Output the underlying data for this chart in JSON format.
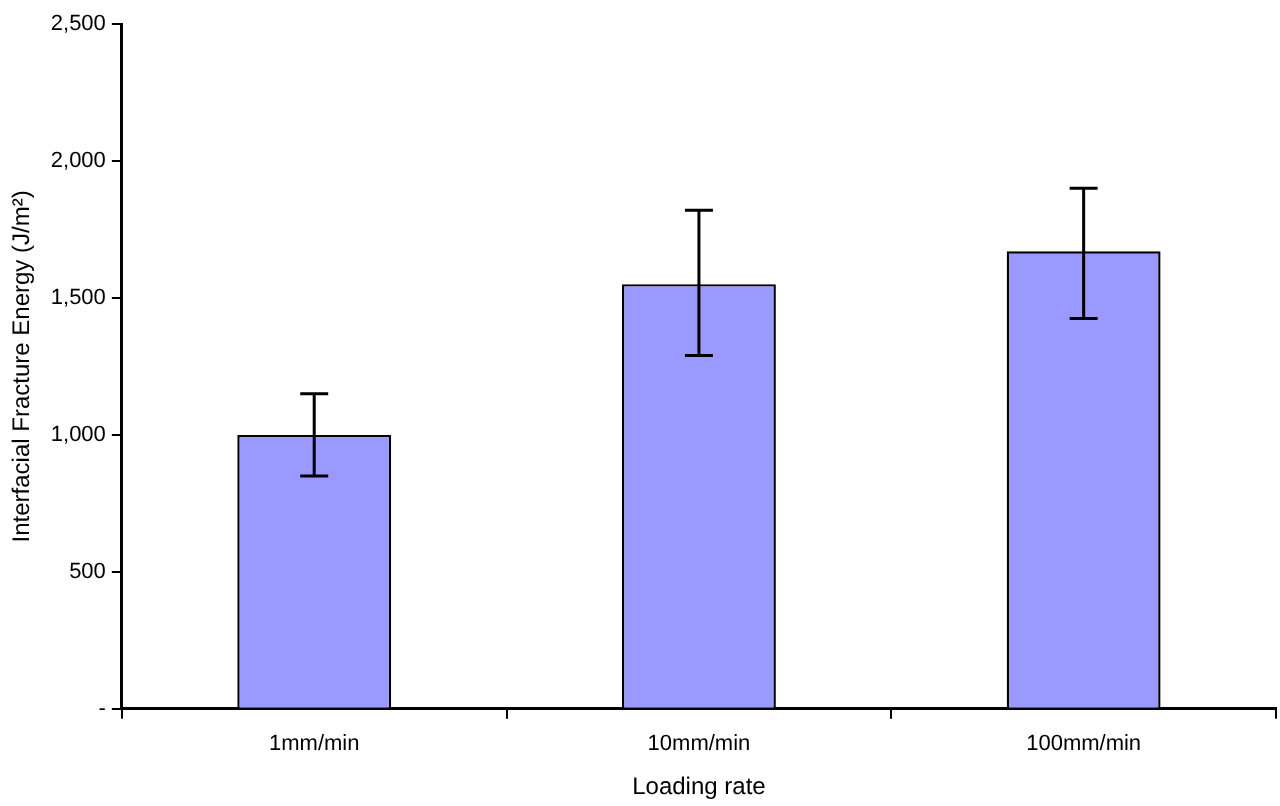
{
  "chart_data": {
    "type": "bar",
    "xlabel": "Loading rate",
    "ylabel": "Interfacial Fracture Energy (J/m²)",
    "categories": [
      "1mm/min",
      "10mm/min",
      "100mm/min"
    ],
    "values": [
      1000,
      1550,
      1670
    ],
    "errors": [
      [
        850,
        1150
      ],
      [
        1290,
        1820
      ],
      [
        1425,
        1900
      ]
    ],
    "color": "#9999ff",
    "ylim": [
      0,
      2500
    ],
    "yticks": [
      {
        "value": 0,
        "label": "-"
      },
      {
        "value": 500,
        "label": "500"
      },
      {
        "value": 1000,
        "label": "1,000"
      },
      {
        "value": 1500,
        "label": "1,500"
      },
      {
        "value": 2000,
        "label": "2,000"
      },
      {
        "value": 2500,
        "label": "2,500"
      }
    ],
    "grid": false,
    "legend": false
  }
}
